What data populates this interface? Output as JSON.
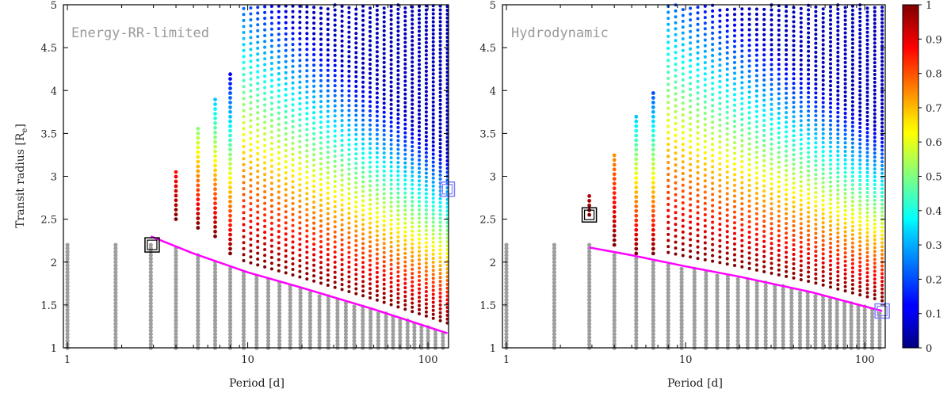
{
  "chart_data": [
    {
      "type": "scatter",
      "title": "Energy-RR-limited",
      "xlabel": "Period [d]",
      "ylabel": "Transit radius [Re]",
      "xscale": "log",
      "xlim": [
        0.95,
        130
      ],
      "ylim": [
        1,
        5
      ],
      "xticks": [
        1,
        10,
        100
      ],
      "yticks": [
        1,
        1.5,
        2,
        2.5,
        3,
        3.5,
        4,
        4.5,
        5
      ],
      "grid": false,
      "gray_columns_x": [
        1.0,
        1.85,
        2.9,
        4.0,
        5.3,
        6.6,
        8.0,
        9.5,
        11.2,
        13.0,
        15.0,
        17.2,
        19.6,
        22.2,
        25.0,
        28.0,
        31.5,
        35.0,
        39.0,
        43.5,
        48.0,
        53.0,
        58.5,
        64.0,
        70.0,
        77.0,
        84.0,
        92.0,
        100.0,
        110.0,
        121.0
      ],
      "threshold_curve": {
        "color": "#ff00ff",
        "points": [
          [
            2.9,
            2.3
          ],
          [
            5,
            2.1
          ],
          [
            10,
            1.88
          ],
          [
            20,
            1.7
          ],
          [
            50,
            1.45
          ],
          [
            128,
            1.17
          ]
        ]
      },
      "colored_columns": [
        {
          "x": 4.0,
          "ymin": 2.5,
          "ymax": 3.1
        },
        {
          "x": 5.3,
          "ymin": 2.4,
          "ymax": 3.6
        },
        {
          "x": 6.6,
          "ymin": 2.3,
          "ymax": 3.9
        },
        {
          "x": 8.0,
          "ymin": 2.1,
          "ymax": 4.2
        }
      ],
      "grid_region": {
        "x_from": 9.5,
        "x_to": 128,
        "ymax": 5.0
      },
      "markers": [
        {
          "x": 2.95,
          "y": 2.2,
          "color": "#000000"
        },
        {
          "x": 128,
          "y": 2.85,
          "color": "#7f7fff"
        }
      ]
    },
    {
      "type": "scatter",
      "title": "Hydrodynamic",
      "xlabel": "Period [d]",
      "ylabel": "",
      "xscale": "log",
      "xlim": [
        0.95,
        130
      ],
      "ylim": [
        1,
        5
      ],
      "xticks": [
        1,
        10,
        100
      ],
      "yticks": [
        1,
        1.5,
        2,
        2.5,
        3,
        3.5,
        4,
        4.5,
        5
      ],
      "grid": false,
      "threshold_curve": {
        "color": "#ff00ff",
        "points": [
          [
            2.9,
            2.17
          ],
          [
            5,
            2.08
          ],
          [
            10,
            1.95
          ],
          [
            20,
            1.83
          ],
          [
            50,
            1.65
          ],
          [
            125,
            1.43
          ]
        ]
      },
      "colored_columns": [
        {
          "x": 2.9,
          "ymin": 2.55,
          "ymax": 2.8
        },
        {
          "x": 4.0,
          "ymin": 2.2,
          "ymax": 3.3
        },
        {
          "x": 5.3,
          "ymin": 2.1,
          "ymax": 3.75
        },
        {
          "x": 6.6,
          "ymin": 2.1,
          "ymax": 4.0
        }
      ],
      "grid_region": {
        "x_from": 8.0,
        "x_to": 125,
        "ymax": 5.0
      },
      "markers": [
        {
          "x": 2.9,
          "y": 2.55,
          "color": "#000000"
        },
        {
          "x": 125,
          "y": 1.43,
          "color": "#7f7fff"
        }
      ]
    }
  ],
  "colorbar": {
    "min": 0,
    "max": 1,
    "ticks": [
      "0",
      "0.1",
      "0.2",
      "0.3",
      "0.4",
      "0.5",
      "0.6",
      "0.7",
      "0.8",
      "0.9",
      "1"
    ],
    "colormap": "jet"
  }
}
